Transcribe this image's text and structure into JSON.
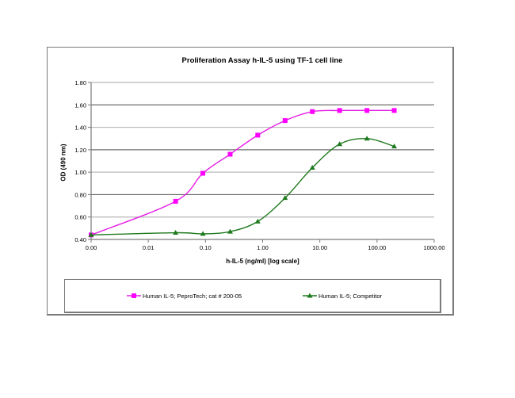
{
  "chart_data": {
    "type": "line",
    "title": "Proliferation Assay h-IL-5 using TF-1 cell line",
    "xlabel": "h-IL-5 (ng/ml) [log scale]",
    "ylabel": "OD (490 nm)",
    "x_scale": "log",
    "xlim": [
      0.001,
      1000
    ],
    "ylim": [
      0.4,
      1.8
    ],
    "x_tick_labels": [
      "0.00",
      "0.01",
      "0.10",
      "1.00",
      "10.00",
      "100.00",
      "1000.00"
    ],
    "y_tick_labels": [
      "0.40",
      "0.60",
      "0.80",
      "1.00",
      "1.20",
      "1.40",
      "1.60",
      "1.80"
    ],
    "grid": true,
    "legend_position": "bottom",
    "x": [
      0.001,
      0.03,
      0.09,
      0.27,
      0.82,
      2.47,
      7.4,
      22.2,
      66.7,
      200
    ],
    "series": [
      {
        "name": "Human IL-5; PeproTech; cat # 200-05",
        "color": "#FF00FF",
        "marker": "square",
        "values": [
          0.44,
          0.74,
          0.99,
          1.16,
          1.33,
          1.46,
          1.54,
          1.55,
          1.55,
          1.55
        ]
      },
      {
        "name": "Human IL-5; Competitor",
        "color": "#1E7A1E",
        "marker": "triangle",
        "values": [
          0.44,
          0.46,
          0.45,
          0.47,
          0.56,
          0.77,
          1.04,
          1.25,
          1.3,
          1.23
        ]
      }
    ]
  },
  "legend": {
    "items": [
      {
        "label": "Human IL-5; PeproTech; cat # 200-05"
      },
      {
        "label": "Human IL-5; Competitor"
      }
    ]
  }
}
